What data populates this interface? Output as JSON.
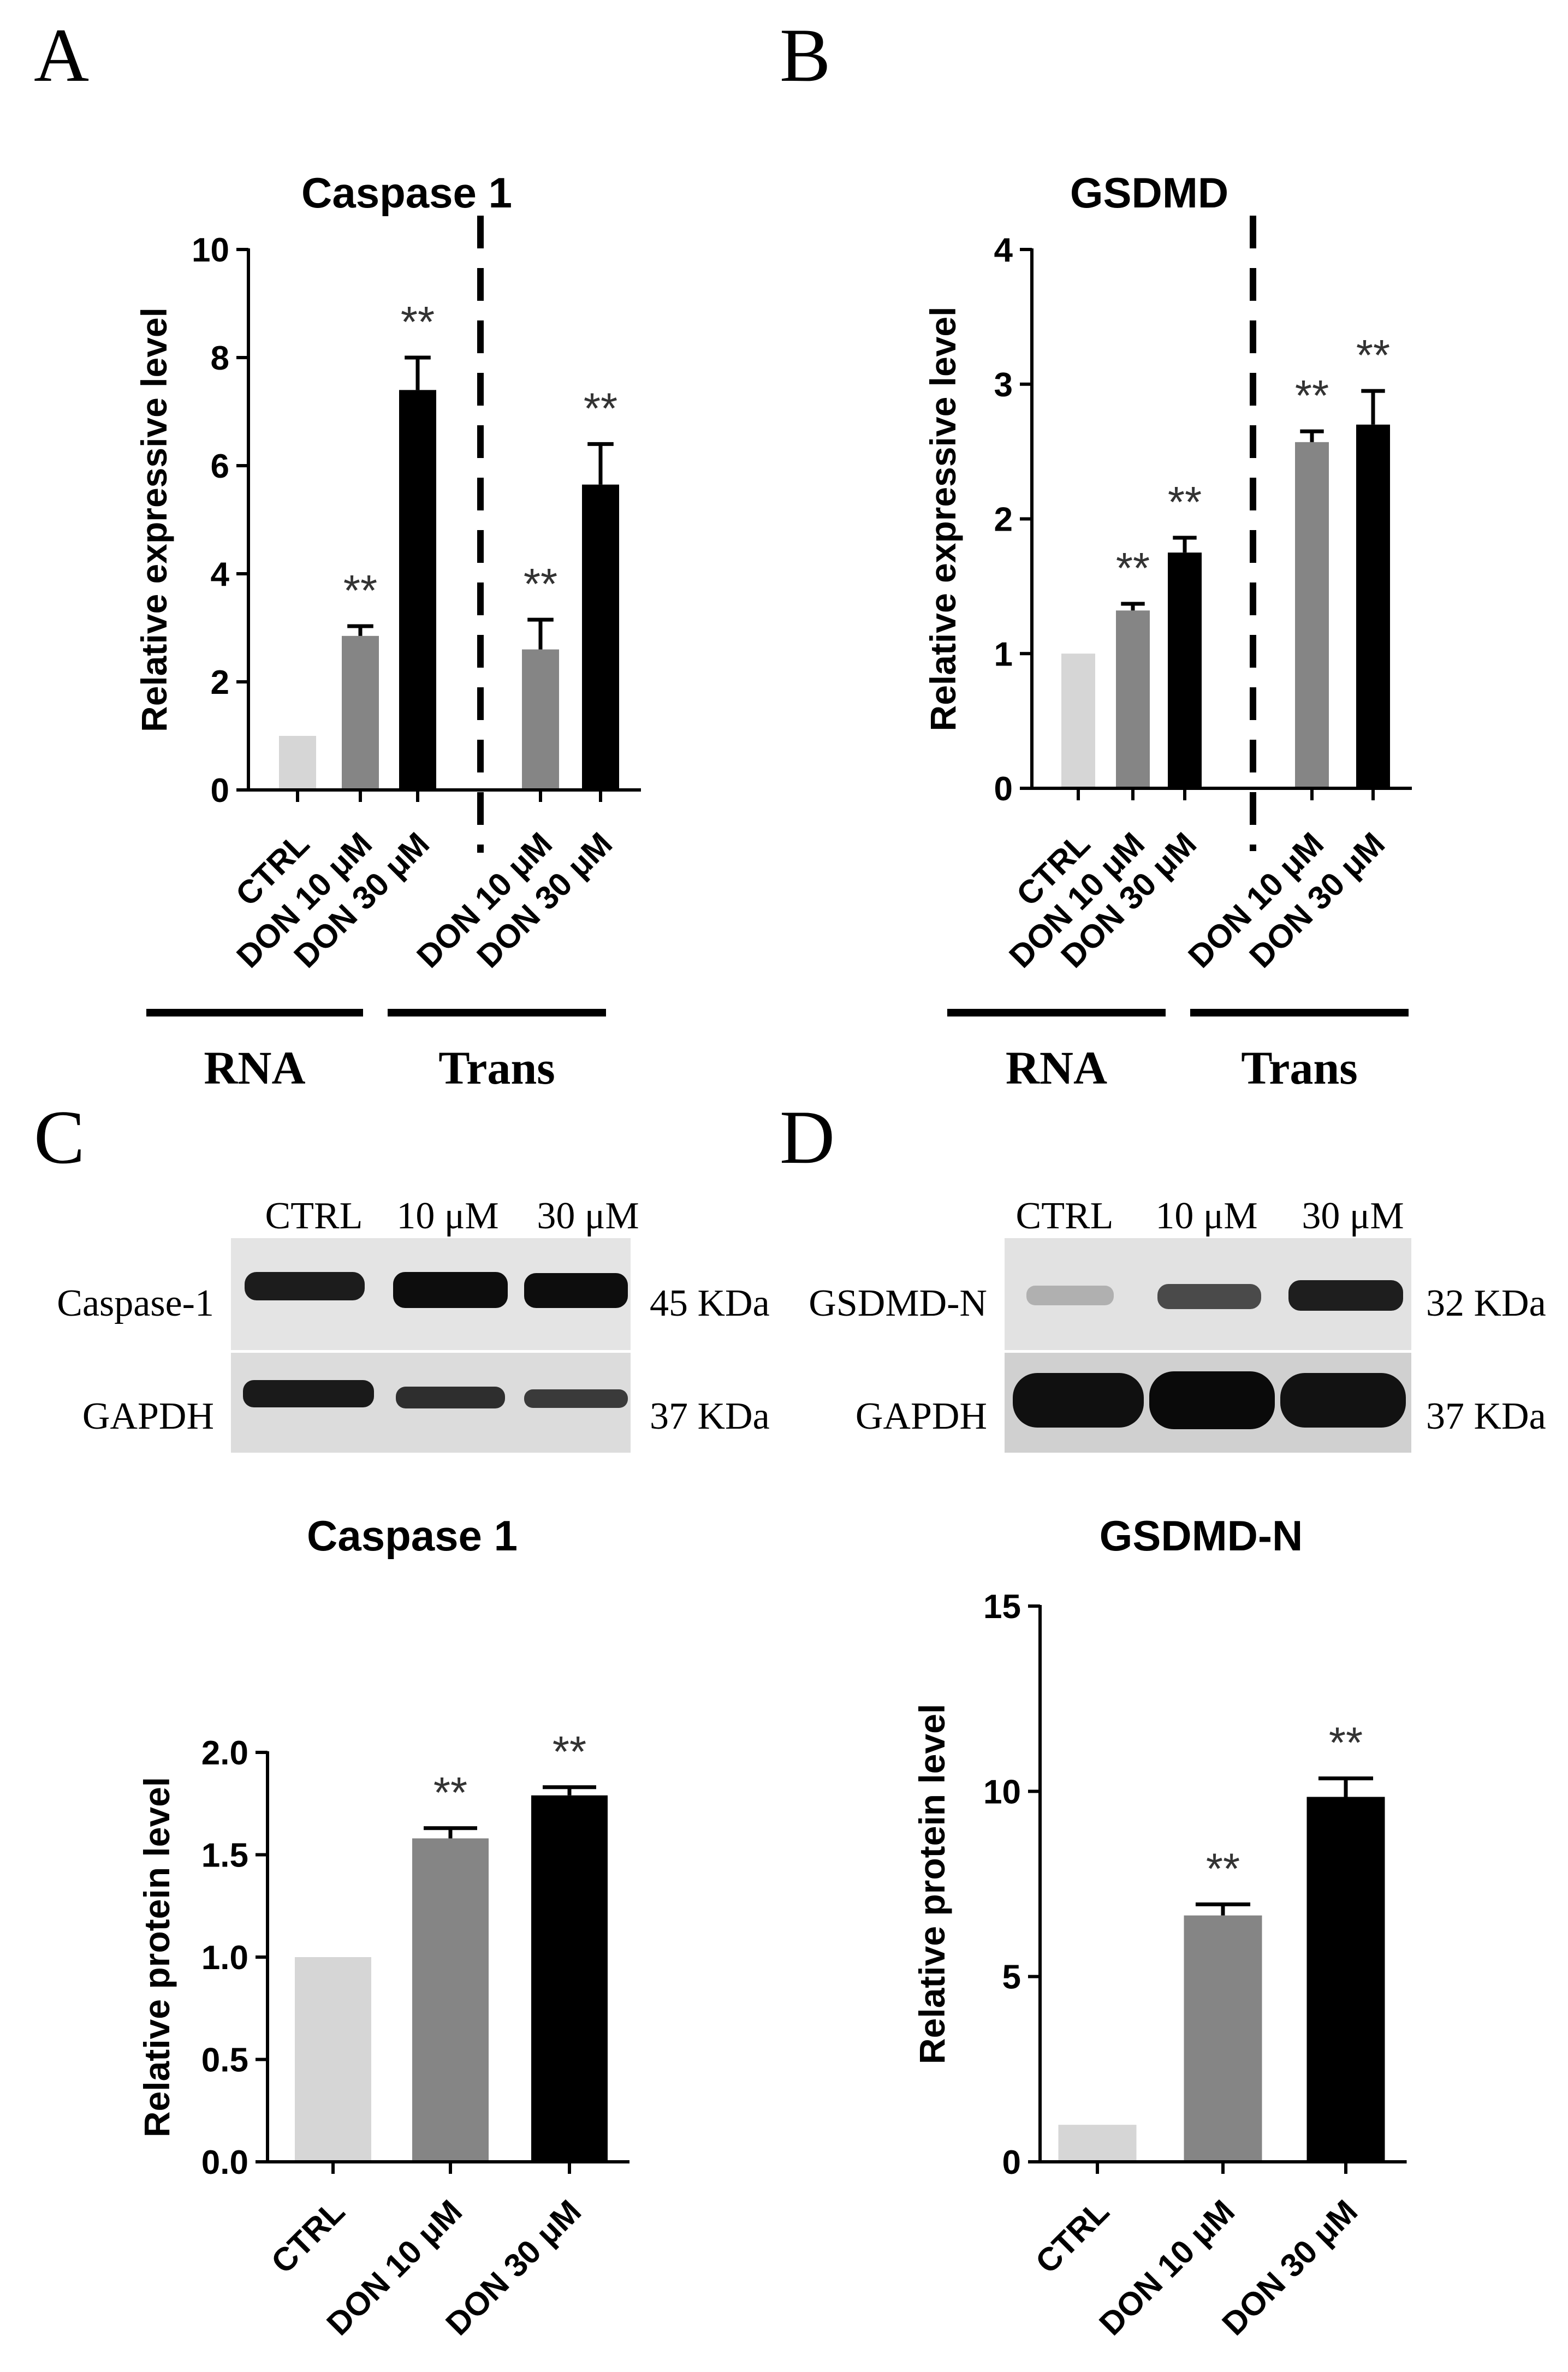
{
  "panels": {
    "A": {
      "letter": "A",
      "title": "Caspase 1",
      "ylabel": "Relative expressive level",
      "group_labels": [
        "RNA",
        "Trans"
      ]
    },
    "B": {
      "letter": "B",
      "title": "GSDMD",
      "ylabel": "Relative expressive level",
      "group_labels": [
        "RNA",
        "Trans"
      ]
    },
    "C": {
      "letter": "C",
      "blot": {
        "lanes": [
          "CTRL",
          "10 μM",
          "30 μM"
        ],
        "rows": [
          {
            "label": "Caspase-1",
            "size": "45 KDa"
          },
          {
            "label": "GAPDH",
            "size": "37 KDa"
          }
        ]
      },
      "title": "Caspase 1",
      "ylabel": "Relative protein level"
    },
    "D": {
      "letter": "D",
      "blot": {
        "lanes": [
          "CTRL",
          "10 μM",
          "30 μM"
        ],
        "rows": [
          {
            "label": "GSDMD-N",
            "size": "32 KDa"
          },
          {
            "label": "GAPDH",
            "size": "37 KDa"
          }
        ]
      },
      "title": "GSDMD-N",
      "ylabel": "Relative protein level"
    }
  },
  "colors": {
    "ctrl": "#d6d6d6",
    "don10": "#858585",
    "don30": "#000000"
  },
  "chart_data": [
    {
      "panel": "A",
      "type": "bar",
      "title": "Caspase 1",
      "ylabel": "Relative expressive level",
      "ylim": [
        0,
        10
      ],
      "yticks": [
        "0",
        "2",
        "4",
        "6",
        "8",
        "10"
      ],
      "categories": [
        "CTRL",
        "DON 10 μM",
        "DON 30 μM",
        "DON 10 μM",
        "DON 30 μM"
      ],
      "values": [
        1.0,
        2.85,
        7.4,
        2.6,
        5.65
      ],
      "errors": [
        0,
        0.18,
        0.6,
        0.55,
        0.75
      ],
      "significance": [
        "",
        "**",
        "**",
        "**",
        "**"
      ],
      "groups": [
        {
          "label": "RNA",
          "members": [
            0,
            1,
            2
          ]
        },
        {
          "label": "Trans",
          "members": [
            3,
            4
          ]
        }
      ],
      "divider_after": 2
    },
    {
      "panel": "B",
      "type": "bar",
      "title": "GSDMD",
      "ylabel": "Relative expressive level",
      "ylim": [
        0,
        4
      ],
      "yticks": [
        "0",
        "1",
        "2",
        "3",
        "4"
      ],
      "categories": [
        "CTRL",
        "DON 10 μM",
        "DON 30 μM",
        "DON 10 μM",
        "DON 30 μM"
      ],
      "values": [
        1.0,
        1.32,
        1.75,
        2.57,
        2.7
      ],
      "errors": [
        0,
        0.05,
        0.11,
        0.08,
        0.25
      ],
      "significance": [
        "",
        "**",
        "**",
        "**",
        "**"
      ],
      "groups": [
        {
          "label": "RNA",
          "members": [
            0,
            1,
            2
          ]
        },
        {
          "label": "Trans",
          "members": [
            3,
            4
          ]
        }
      ],
      "divider_after": 2
    },
    {
      "panel": "C",
      "type": "bar",
      "title": "Caspase 1",
      "ylabel": "Relative protein level",
      "ylim": [
        0,
        2.0
      ],
      "yticks": [
        "0.0",
        "0.5",
        "1.0",
        "1.5",
        "2.0"
      ],
      "categories": [
        "CTRL",
        "DON 10 μM",
        "DON 30 μM"
      ],
      "values": [
        1.0,
        1.58,
        1.79
      ],
      "errors": [
        0,
        0.05,
        0.04
      ],
      "significance": [
        "",
        "**",
        "**"
      ]
    },
    {
      "panel": "D",
      "type": "bar",
      "title": "GSDMD-N",
      "ylabel": "Relative protein level",
      "ylim": [
        0,
        15
      ],
      "yticks": [
        "0",
        "5",
        "10",
        "15"
      ],
      "categories": [
        "CTRL",
        "DON 10 μM",
        "DON 30 μM"
      ],
      "values": [
        1.0,
        6.65,
        9.85
      ],
      "errors": [
        0,
        0.3,
        0.5
      ],
      "significance": [
        "",
        "**",
        "**"
      ]
    }
  ]
}
